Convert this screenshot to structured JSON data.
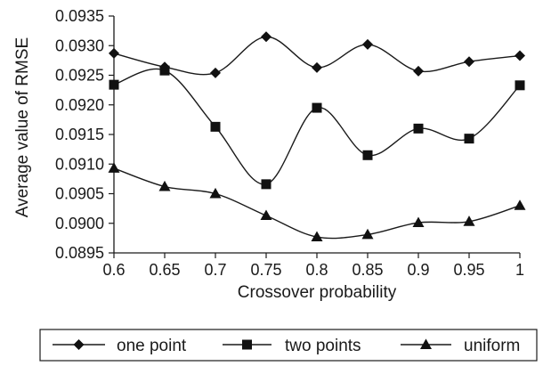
{
  "chart_data": {
    "type": "line",
    "title": "",
    "xlabel": "Crossover probability",
    "ylabel": "Average value of RMSE",
    "x": [
      0.6,
      0.65,
      0.7,
      0.75,
      0.8,
      0.85,
      0.9,
      0.95,
      1
    ],
    "x_tick_labels": [
      "0.6",
      "0.65",
      "0.7",
      "0.75",
      "0.8",
      "0.85",
      "0.9",
      "0.95",
      "1"
    ],
    "y_tick_labels": [
      "0.0895",
      "0.0900",
      "0.0905",
      "0.0910",
      "0.0915",
      "0.0920",
      "0.0925",
      "0.0930",
      "0.0935"
    ],
    "y_ticks": [
      0.0895,
      0.09,
      0.0905,
      0.091,
      0.0915,
      0.092,
      0.0925,
      0.093,
      0.0935
    ],
    "ylim": [
      0.0895,
      0.0935
    ],
    "grid": false,
    "legend_position": "bottom",
    "series": [
      {
        "name": "one point",
        "marker": "diamond",
        "values": [
          0.09287,
          0.09264,
          0.09254,
          0.09315,
          0.09263,
          0.09302,
          0.09257,
          0.09273,
          0.09283
        ]
      },
      {
        "name": "two points",
        "marker": "square",
        "values": [
          0.09234,
          0.09258,
          0.09163,
          0.09066,
          0.09195,
          0.09115,
          0.0916,
          0.09143,
          0.09233
        ]
      },
      {
        "name": "uniform",
        "marker": "triangle",
        "values": [
          0.09093,
          0.09062,
          0.0905,
          0.09013,
          0.08977,
          0.08981,
          0.09001,
          0.09003,
          0.0903
        ]
      }
    ],
    "colors": {
      "line": "#1a1a1a",
      "marker": "#111111",
      "axis": "#1a1a1a"
    }
  }
}
